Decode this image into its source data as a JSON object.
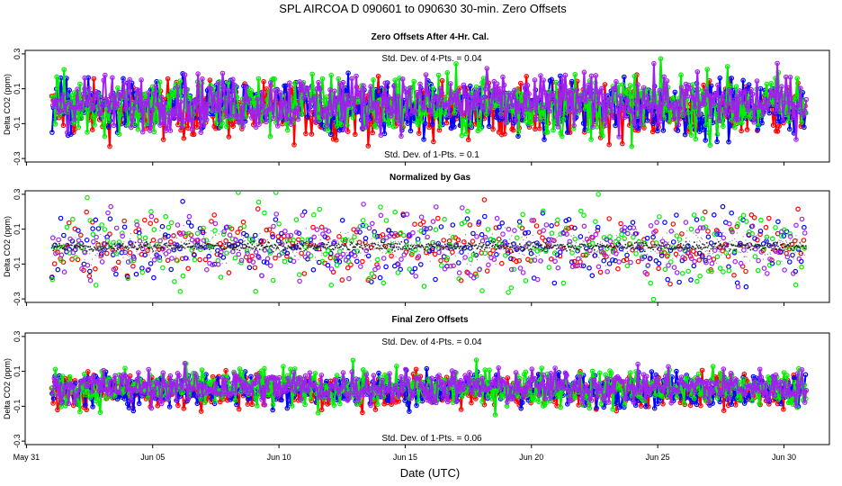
{
  "chart_data": {
    "type": "line",
    "title": "SPL    AIRCOA D    090601 to 090630    30-min. Zero Offsets",
    "xlabel": "Date (UTC)",
    "x_ticks": [
      "May 31",
      "Jun 05",
      "Jun 10",
      "Jun 15",
      "Jun 20",
      "Jun 25",
      "Jun 30"
    ],
    "x_tick_days": [
      0,
      5,
      10,
      15,
      20,
      25,
      30
    ],
    "xlim_days": [
      -0.05,
      31.8
    ],
    "data_range_days": [
      1.0,
      30.9
    ],
    "series_colors": {
      "gas1": "#ff0000",
      "gas2": "#0000ff",
      "gas3": "#00ee00",
      "gas4": "#a020f0"
    },
    "panels": [
      {
        "title": "Zero Offsets After 4-Hr. Cal.",
        "ylabel": "Delta CO2 (ppm)",
        "ylim": [
          -0.32,
          0.32
        ],
        "y_ticks": [
          "-0.3",
          "-0.1",
          "0.1",
          "0.3"
        ],
        "y_tick_values": [
          -0.3,
          -0.1,
          0.1,
          0.3
        ],
        "stat_top": "Std. Dev. of 4-Pts. =  0.04",
        "stat_bottom": "Std. Dev. of 1-Pts. =  0.1",
        "mode": "raw",
        "center": 0.0,
        "spread": 0.08
      },
      {
        "title": "Normalized by Gas",
        "ylabel": "Delta CO2 (ppm)",
        "ylim": [
          -0.32,
          0.32
        ],
        "y_ticks": [
          "-0.3",
          "-0.1",
          "0.1",
          "0.3"
        ],
        "y_tick_values": [
          -0.3,
          -0.1,
          0.1,
          0.3
        ],
        "stat_top": "",
        "stat_bottom": "",
        "mode": "normalized",
        "center": 0.0,
        "spread": 0.1
      },
      {
        "title": "Final Zero Offsets",
        "ylabel": "Delta CO2 (ppm)",
        "ylim": [
          -0.32,
          0.32
        ],
        "y_ticks": [
          "-0.3",
          "-0.1",
          "0.1",
          "0.3"
        ],
        "y_tick_values": [
          -0.3,
          -0.1,
          0.1,
          0.3
        ],
        "stat_top": "Std. Dev. of 4-Pts. =  0.04",
        "stat_bottom": "Std. Dev. of 1-Pts. =  0.06",
        "mode": "final",
        "center": 0.0,
        "spread": 0.05
      }
    ]
  }
}
